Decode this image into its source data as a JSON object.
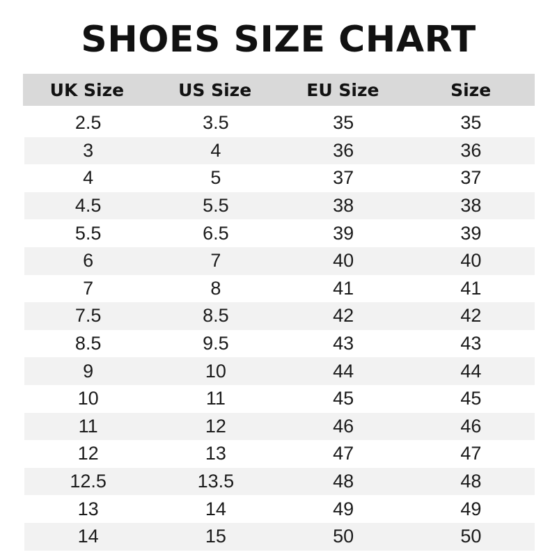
{
  "title": "SHOES SIZE CHART",
  "colors": {
    "header_bg": "#d9d9d9",
    "stripe_bg": "#f2f2f2",
    "text": "#111111"
  },
  "columns": [
    "UK Size",
    "US Size",
    "EU Size",
    "Size"
  ],
  "rows": [
    [
      "2.5",
      "3.5",
      "35",
      "35"
    ],
    [
      "3",
      "4",
      "36",
      "36"
    ],
    [
      "4",
      "5",
      "37",
      "37"
    ],
    [
      "4.5",
      "5.5",
      "38",
      "38"
    ],
    [
      "5.5",
      "6.5",
      "39",
      "39"
    ],
    [
      "6",
      "7",
      "40",
      "40"
    ],
    [
      "7",
      "8",
      "41",
      "41"
    ],
    [
      "7.5",
      "8.5",
      "42",
      "42"
    ],
    [
      "8.5",
      "9.5",
      "43",
      "43"
    ],
    [
      "9",
      "10",
      "44",
      "44"
    ],
    [
      "10",
      "11",
      "45",
      "45"
    ],
    [
      "11",
      "12",
      "46",
      "46"
    ],
    [
      "12",
      "13",
      "47",
      "47"
    ],
    [
      "12.5",
      "13.5",
      "48",
      "48"
    ],
    [
      "13",
      "14",
      "49",
      "49"
    ],
    [
      "14",
      "15",
      "50",
      "50"
    ]
  ]
}
